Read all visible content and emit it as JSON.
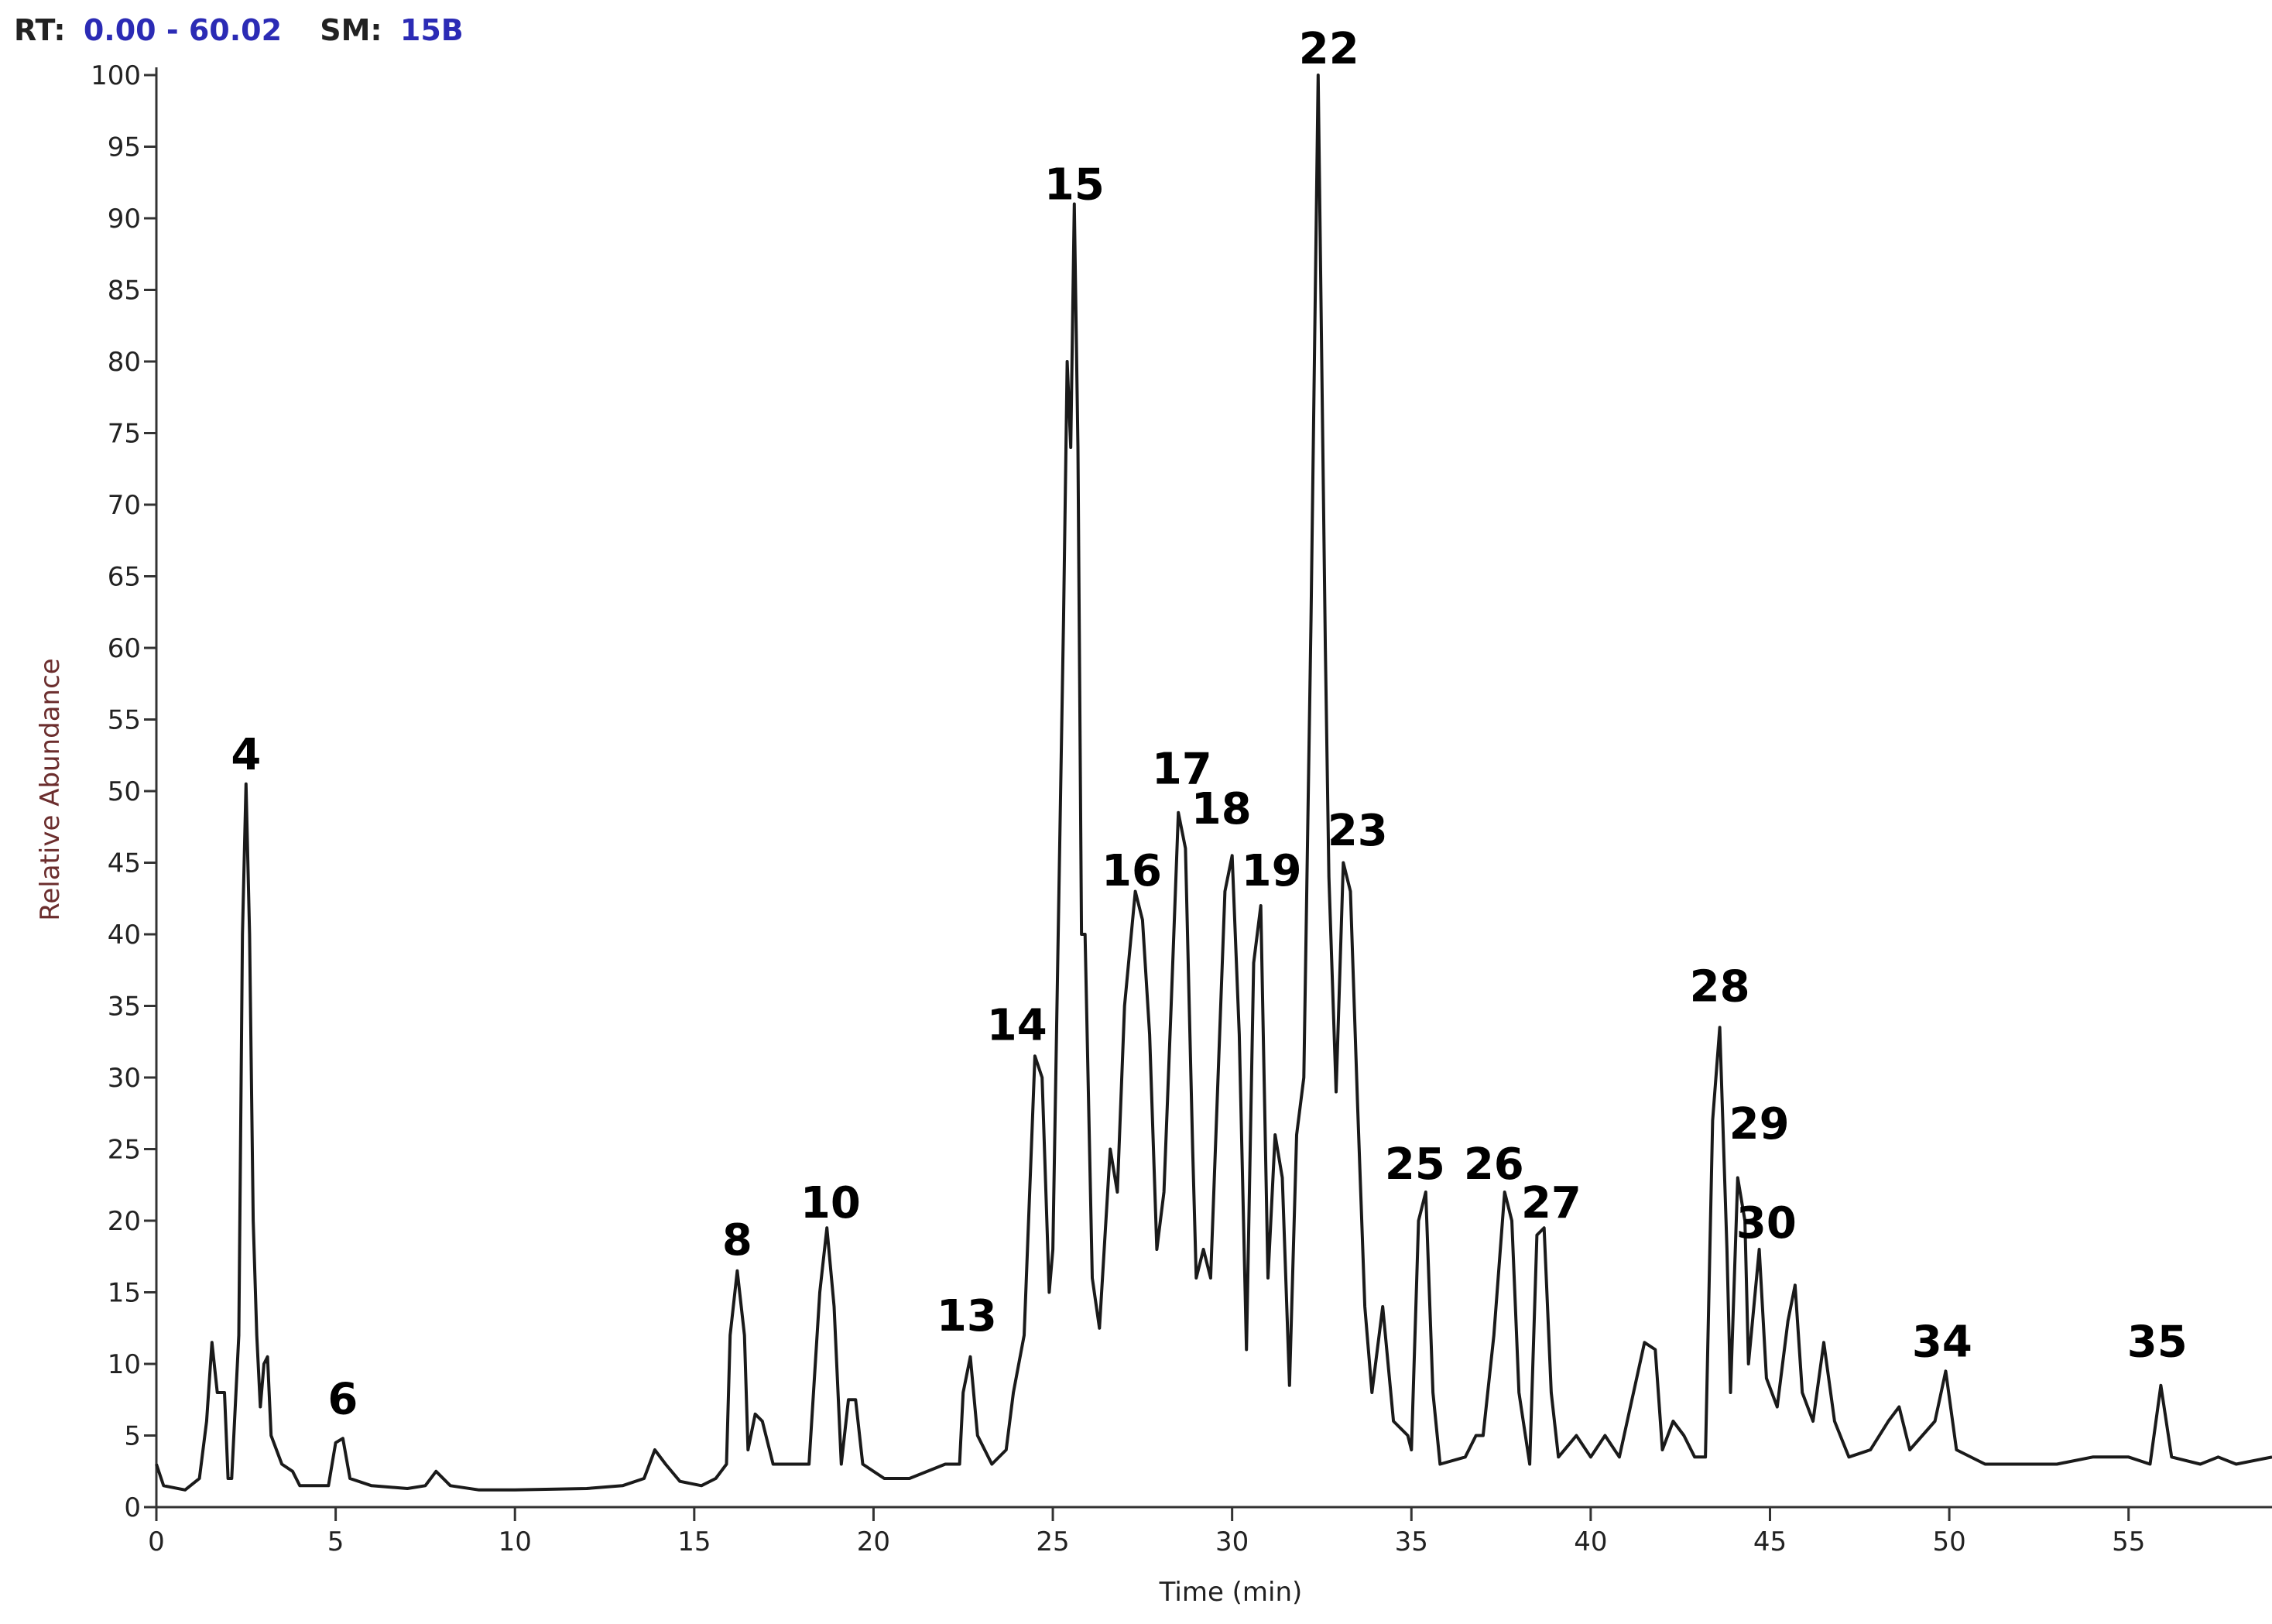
{
  "header": {
    "rt_label": "RT:",
    "rt_value": "0.00 - 60.02",
    "sm_label": "SM:",
    "sm_value": "15B"
  },
  "chart_data": {
    "type": "line",
    "xlabel": "Time (min)",
    "ylabel": "Relative Abundance",
    "color": "#1a1a1a",
    "xlim": [
      0,
      59
    ],
    "xticks": [
      0,
      5,
      10,
      15,
      20,
      25,
      30,
      35,
      40,
      45,
      50,
      55
    ],
    "ylim": [
      0,
      100
    ],
    "yticks": [
      0,
      5,
      10,
      15,
      20,
      25,
      30,
      35,
      40,
      45,
      50,
      55,
      60,
      65,
      70,
      75,
      80,
      85,
      90,
      95,
      100
    ],
    "x": [
      0,
      0.2,
      0.8,
      1.2,
      1.4,
      1.55,
      1.7,
      1.9,
      2.0,
      2.1,
      2.3,
      2.4,
      2.5,
      2.6,
      2.7,
      2.8,
      2.9,
      3.0,
      3.1,
      3.2,
      3.5,
      3.8,
      4.0,
      4.8,
      5.0,
      5.2,
      5.4,
      6,
      7,
      7.5,
      7.8,
      8.2,
      9,
      10,
      12,
      13,
      13.6,
      13.9,
      14.2,
      14.6,
      15.2,
      15.6,
      15.9,
      16.0,
      16.2,
      16.4,
      16.5,
      16.7,
      16.9,
      17.2,
      18.2,
      18.5,
      18.7,
      18.9,
      19.1,
      19.3,
      19.5,
      19.7,
      20.3,
      21,
      22,
      22.4,
      22.5,
      22.7,
      22.9,
      23.3,
      23.7,
      23.9,
      24.2,
      24.4,
      24.5,
      24.7,
      24.9,
      25.0,
      25.3,
      25.4,
      25.5,
      25.6,
      25.7,
      25.8,
      25.9,
      26.1,
      26.3,
      26.6,
      26.8,
      27.0,
      27.3,
      27.5,
      27.7,
      27.9,
      28.1,
      28.3,
      28.5,
      28.7,
      28.9,
      29.0,
      29.2,
      29.4,
      29.8,
      30.0,
      30.2,
      30.4,
      30.6,
      30.8,
      31.0,
      31.2,
      31.4,
      31.6,
      31.8,
      32.0,
      32.2,
      32.4,
      32.6,
      32.7,
      32.9,
      33.1,
      33.3,
      33.5,
      33.7,
      33.9,
      34.2,
      34.5,
      34.9,
      35.0,
      35.2,
      35.4,
      35.6,
      35.8,
      36.5,
      36.8,
      37.0,
      37.3,
      37.6,
      37.8,
      38.0,
      38.3,
      38.5,
      38.7,
      38.9,
      39.1,
      39.6,
      40.0,
      40.4,
      40.8,
      41.5,
      41.8,
      42.0,
      42.3,
      42.6,
      42.9,
      43.2,
      43.4,
      43.6,
      43.8,
      43.9,
      44.1,
      44.3,
      44.4,
      44.7,
      44.9,
      45.2,
      45.5,
      45.7,
      45.9,
      46.2,
      46.5,
      46.8,
      47.2,
      47.8,
      48.3,
      48.6,
      48.9,
      49.6,
      49.9,
      50.2,
      51,
      52,
      53,
      54,
      55,
      55.6,
      55.9,
      56.2,
      57,
      57.5,
      58,
      59
    ],
    "values": [
      3,
      1.5,
      1.2,
      2,
      6,
      11.5,
      8,
      8,
      2,
      2,
      12,
      40,
      50.5,
      40,
      20,
      12,
      7,
      10,
      10.5,
      5,
      3,
      2.5,
      1.5,
      1.5,
      4.5,
      4.8,
      2,
      1.5,
      1.3,
      1.5,
      2.5,
      1.5,
      1.2,
      1.2,
      1.3,
      1.5,
      2,
      4,
      3,
      1.8,
      1.5,
      2,
      3,
      12,
      16.5,
      12,
      4,
      6.5,
      6,
      3,
      3,
      15,
      19.5,
      14,
      3,
      7.5,
      7.5,
      3,
      2,
      2,
      3,
      3,
      8,
      10.5,
      5,
      3,
      4,
      8,
      12,
      25,
      31.5,
      30,
      15,
      18,
      62,
      80,
      74,
      91,
      74,
      40,
      40,
      16,
      12.5,
      25,
      22,
      35,
      43,
      41,
      33,
      18,
      22,
      35,
      48.5,
      46,
      25,
      16,
      18,
      16,
      43,
      45.5,
      33,
      11,
      38,
      42,
      16,
      26,
      23,
      8.5,
      26,
      30,
      62,
      100,
      60,
      44,
      29,
      45,
      43,
      28,
      14,
      8,
      14,
      6,
      5,
      4,
      20,
      22,
      8,
      3,
      3.5,
      5,
      5,
      12,
      22,
      20,
      8,
      3,
      19,
      19.5,
      8,
      3.5,
      5,
      3.5,
      5,
      3.5,
      11.5,
      11,
      4,
      6,
      5,
      3.5,
      3.5,
      27,
      33.5,
      18,
      8,
      23,
      20,
      10,
      18,
      9,
      7,
      13,
      15.5,
      8,
      6,
      11.5,
      6,
      3.5,
      4,
      6,
      7,
      4,
      6,
      9.5,
      4,
      3,
      3,
      3,
      3.5,
      3.5,
      3,
      8.5,
      3.5,
      3,
      3.5,
      3,
      3.5
    ],
    "annotations": [
      {
        "text": "4",
        "x": 2.5,
        "y": 52.6
      },
      {
        "text": "6",
        "x": 5.2,
        "y": 7.6
      },
      {
        "text": "8",
        "x": 16.2,
        "y": 18.7
      },
      {
        "text": "10",
        "x": 18.8,
        "y": 21.3
      },
      {
        "text": "13",
        "x": 22.6,
        "y": 13.4
      },
      {
        "text": "14",
        "x": 24.0,
        "y": 33.7
      },
      {
        "text": "15",
        "x": 25.6,
        "y": 92.4
      },
      {
        "text": "16",
        "x": 27.2,
        "y": 44.5
      },
      {
        "text": "17",
        "x": 28.6,
        "y": 51.6
      },
      {
        "text": "18",
        "x": 29.7,
        "y": 48.8
      },
      {
        "text": "19",
        "x": 31.1,
        "y": 44.5
      },
      {
        "text": "22",
        "x": 32.7,
        "y": 101.9
      },
      {
        "text": "23",
        "x": 33.5,
        "y": 47.3
      },
      {
        "text": "25",
        "x": 35.1,
        "y": 24.0
      },
      {
        "text": "26",
        "x": 37.3,
        "y": 24.0
      },
      {
        "text": "27",
        "x": 38.9,
        "y": 21.3
      },
      {
        "text": "28",
        "x": 43.6,
        "y": 36.4
      },
      {
        "text": "29",
        "x": 44.7,
        "y": 26.8
      },
      {
        "text": "30",
        "x": 44.9,
        "y": 19.9
      },
      {
        "text": "34",
        "x": 49.8,
        "y": 11.6
      },
      {
        "text": "35",
        "x": 55.8,
        "y": 11.6
      }
    ]
  }
}
